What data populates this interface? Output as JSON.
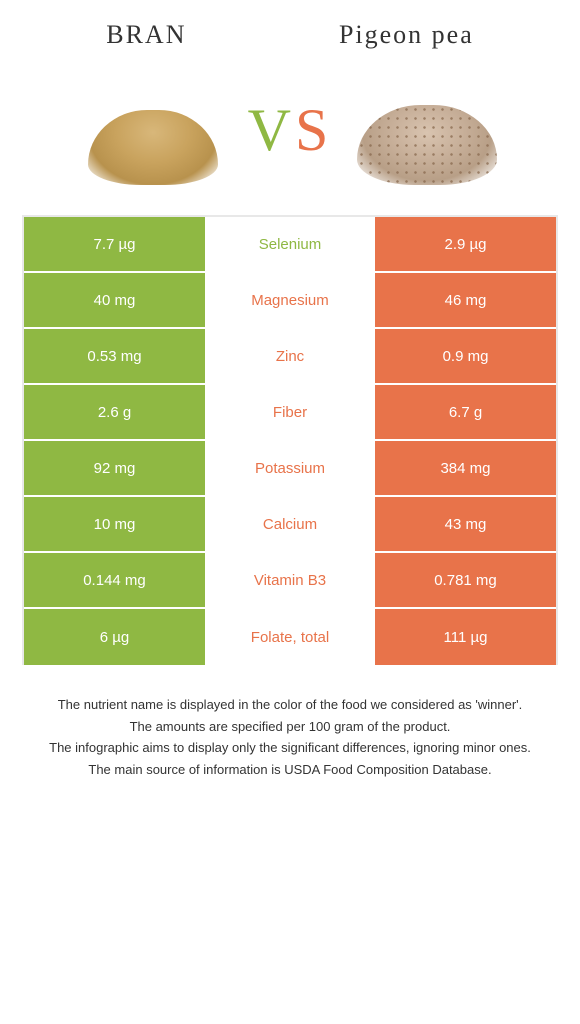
{
  "header": {
    "left_title": "BRAN",
    "right_title": "Pigeon pea"
  },
  "vs": {
    "v": "V",
    "s": "S"
  },
  "colors": {
    "left": "#8fb843",
    "right": "#e8734a",
    "mid_left_text": "#8fb843",
    "mid_right_text": "#e8734a"
  },
  "rows": [
    {
      "left": "7.7 µg",
      "label": "Selenium",
      "right": "2.9 µg",
      "winner": "left"
    },
    {
      "left": "40 mg",
      "label": "Magnesium",
      "right": "46 mg",
      "winner": "right"
    },
    {
      "left": "0.53 mg",
      "label": "Zinc",
      "right": "0.9 mg",
      "winner": "right"
    },
    {
      "left": "2.6 g",
      "label": "Fiber",
      "right": "6.7 g",
      "winner": "right"
    },
    {
      "left": "92 mg",
      "label": "Potassium",
      "right": "384 mg",
      "winner": "right"
    },
    {
      "left": "10 mg",
      "label": "Calcium",
      "right": "43 mg",
      "winner": "right"
    },
    {
      "left": "0.144 mg",
      "label": "Vitamin B3",
      "right": "0.781 mg",
      "winner": "right"
    },
    {
      "left": "6 µg",
      "label": "Folate, total",
      "right": "111 µg",
      "winner": "right"
    }
  ],
  "footer": {
    "l1": "The nutrient name is displayed in the color of the food we considered as 'winner'.",
    "l2": "The amounts are specified per 100 gram of the product.",
    "l3": "The infographic aims to display only the significant differences, ignoring minor ones.",
    "l4": "The main source of information is USDA Food Composition Database."
  }
}
